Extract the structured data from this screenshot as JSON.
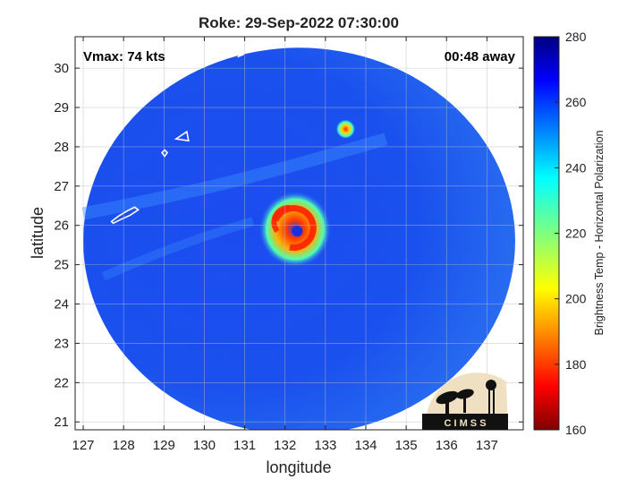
{
  "chart_data": {
    "type": "heatmap",
    "title": "Roke: 29-Sep-2022 07:30:00",
    "xlabel": "longitude",
    "ylabel": "latitude",
    "xlim": [
      126.8,
      137.9
    ],
    "ylim": [
      20.8,
      30.8
    ],
    "xticks": [
      127,
      128,
      129,
      130,
      131,
      132,
      133,
      134,
      135,
      136,
      137
    ],
    "yticks": [
      21,
      22,
      23,
      24,
      25,
      26,
      27,
      28,
      29,
      30
    ],
    "grid": true,
    "annotations": {
      "vmax": "Vmax: 74 kts",
      "time_away": "00:48 away"
    },
    "colorbar": {
      "label": "Brightness Temp - Horizontal Polarization",
      "min": 160,
      "max": 280,
      "ticks": [
        160,
        180,
        200,
        220,
        240,
        260,
        280
      ],
      "colormap": "jet"
    },
    "swath": {
      "center_lon": 132.35,
      "center_lat": 25.6,
      "radius_lon": 5.35,
      "radius_lat": 4.92
    },
    "features": [
      {
        "name": "eyewall",
        "lon": 132.25,
        "lat": 25.9,
        "min_temp": 172
      },
      {
        "name": "eye",
        "lon": 132.3,
        "lat": 25.85,
        "temp": 265
      },
      {
        "name": "convective-cell",
        "lon": 133.5,
        "lat": 28.45,
        "min_temp": 175
      }
    ],
    "background_temp": 262,
    "logo_text": "C I M S S"
  }
}
